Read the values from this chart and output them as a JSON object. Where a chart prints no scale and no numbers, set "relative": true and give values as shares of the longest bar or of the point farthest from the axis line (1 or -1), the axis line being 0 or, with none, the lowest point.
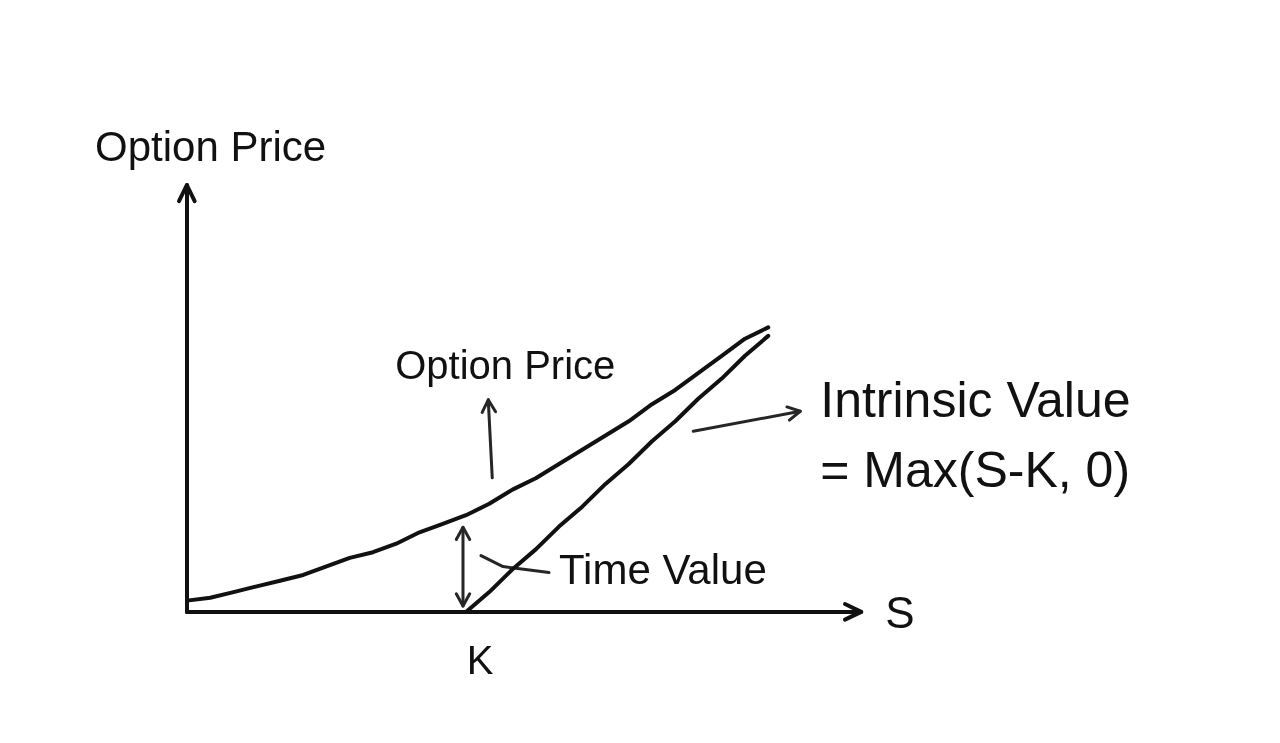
{
  "chart_data": {
    "type": "line",
    "xlabel": "S",
    "ylabel": "Option Price",
    "categories": [
      null,
      null,
      null,
      null,
      null,
      null,
      null,
      null,
      null,
      null,
      null,
      null,
      null,
      null,
      null,
      null,
      null,
      null,
      null,
      null,
      null,
      null,
      null,
      null,
      null,
      null,
      null,
      null,
      null,
      null
    ],
    "relative": true,
    "series": [
      {
        "name": "Option Price",
        "color": "#111111",
        "values": [
          0.04,
          0.05,
          0.07,
          0.09,
          0.11,
          0.13,
          0.16,
          0.19,
          0.21,
          0.24,
          0.28,
          0.31,
          0.34,
          0.38,
          0.43,
          0.47,
          0.52,
          0.57,
          0.62,
          0.67,
          0.73,
          0.78,
          0.84,
          0.9,
          0.96,
          1.0,
          null,
          null,
          null,
          null
        ]
      },
      {
        "name": "Intrinsic Value\n= Max(S-K, 0)",
        "color": "#111111",
        "values": [
          0,
          0,
          0,
          0,
          0,
          0,
          0,
          0,
          0,
          0,
          0,
          0,
          0,
          0.07,
          0.15,
          0.22,
          0.3,
          0.37,
          0.45,
          0.52,
          0.6,
          0.67,
          0.75,
          0.82,
          0.9,
          0.97,
          null,
          null,
          null,
          null
        ]
      }
    ],
    "annotations": [
      "Time Value",
      "K"
    ],
    "legend": false,
    "grid": false,
    "marker": "none",
    "line_style": "solid"
  }
}
